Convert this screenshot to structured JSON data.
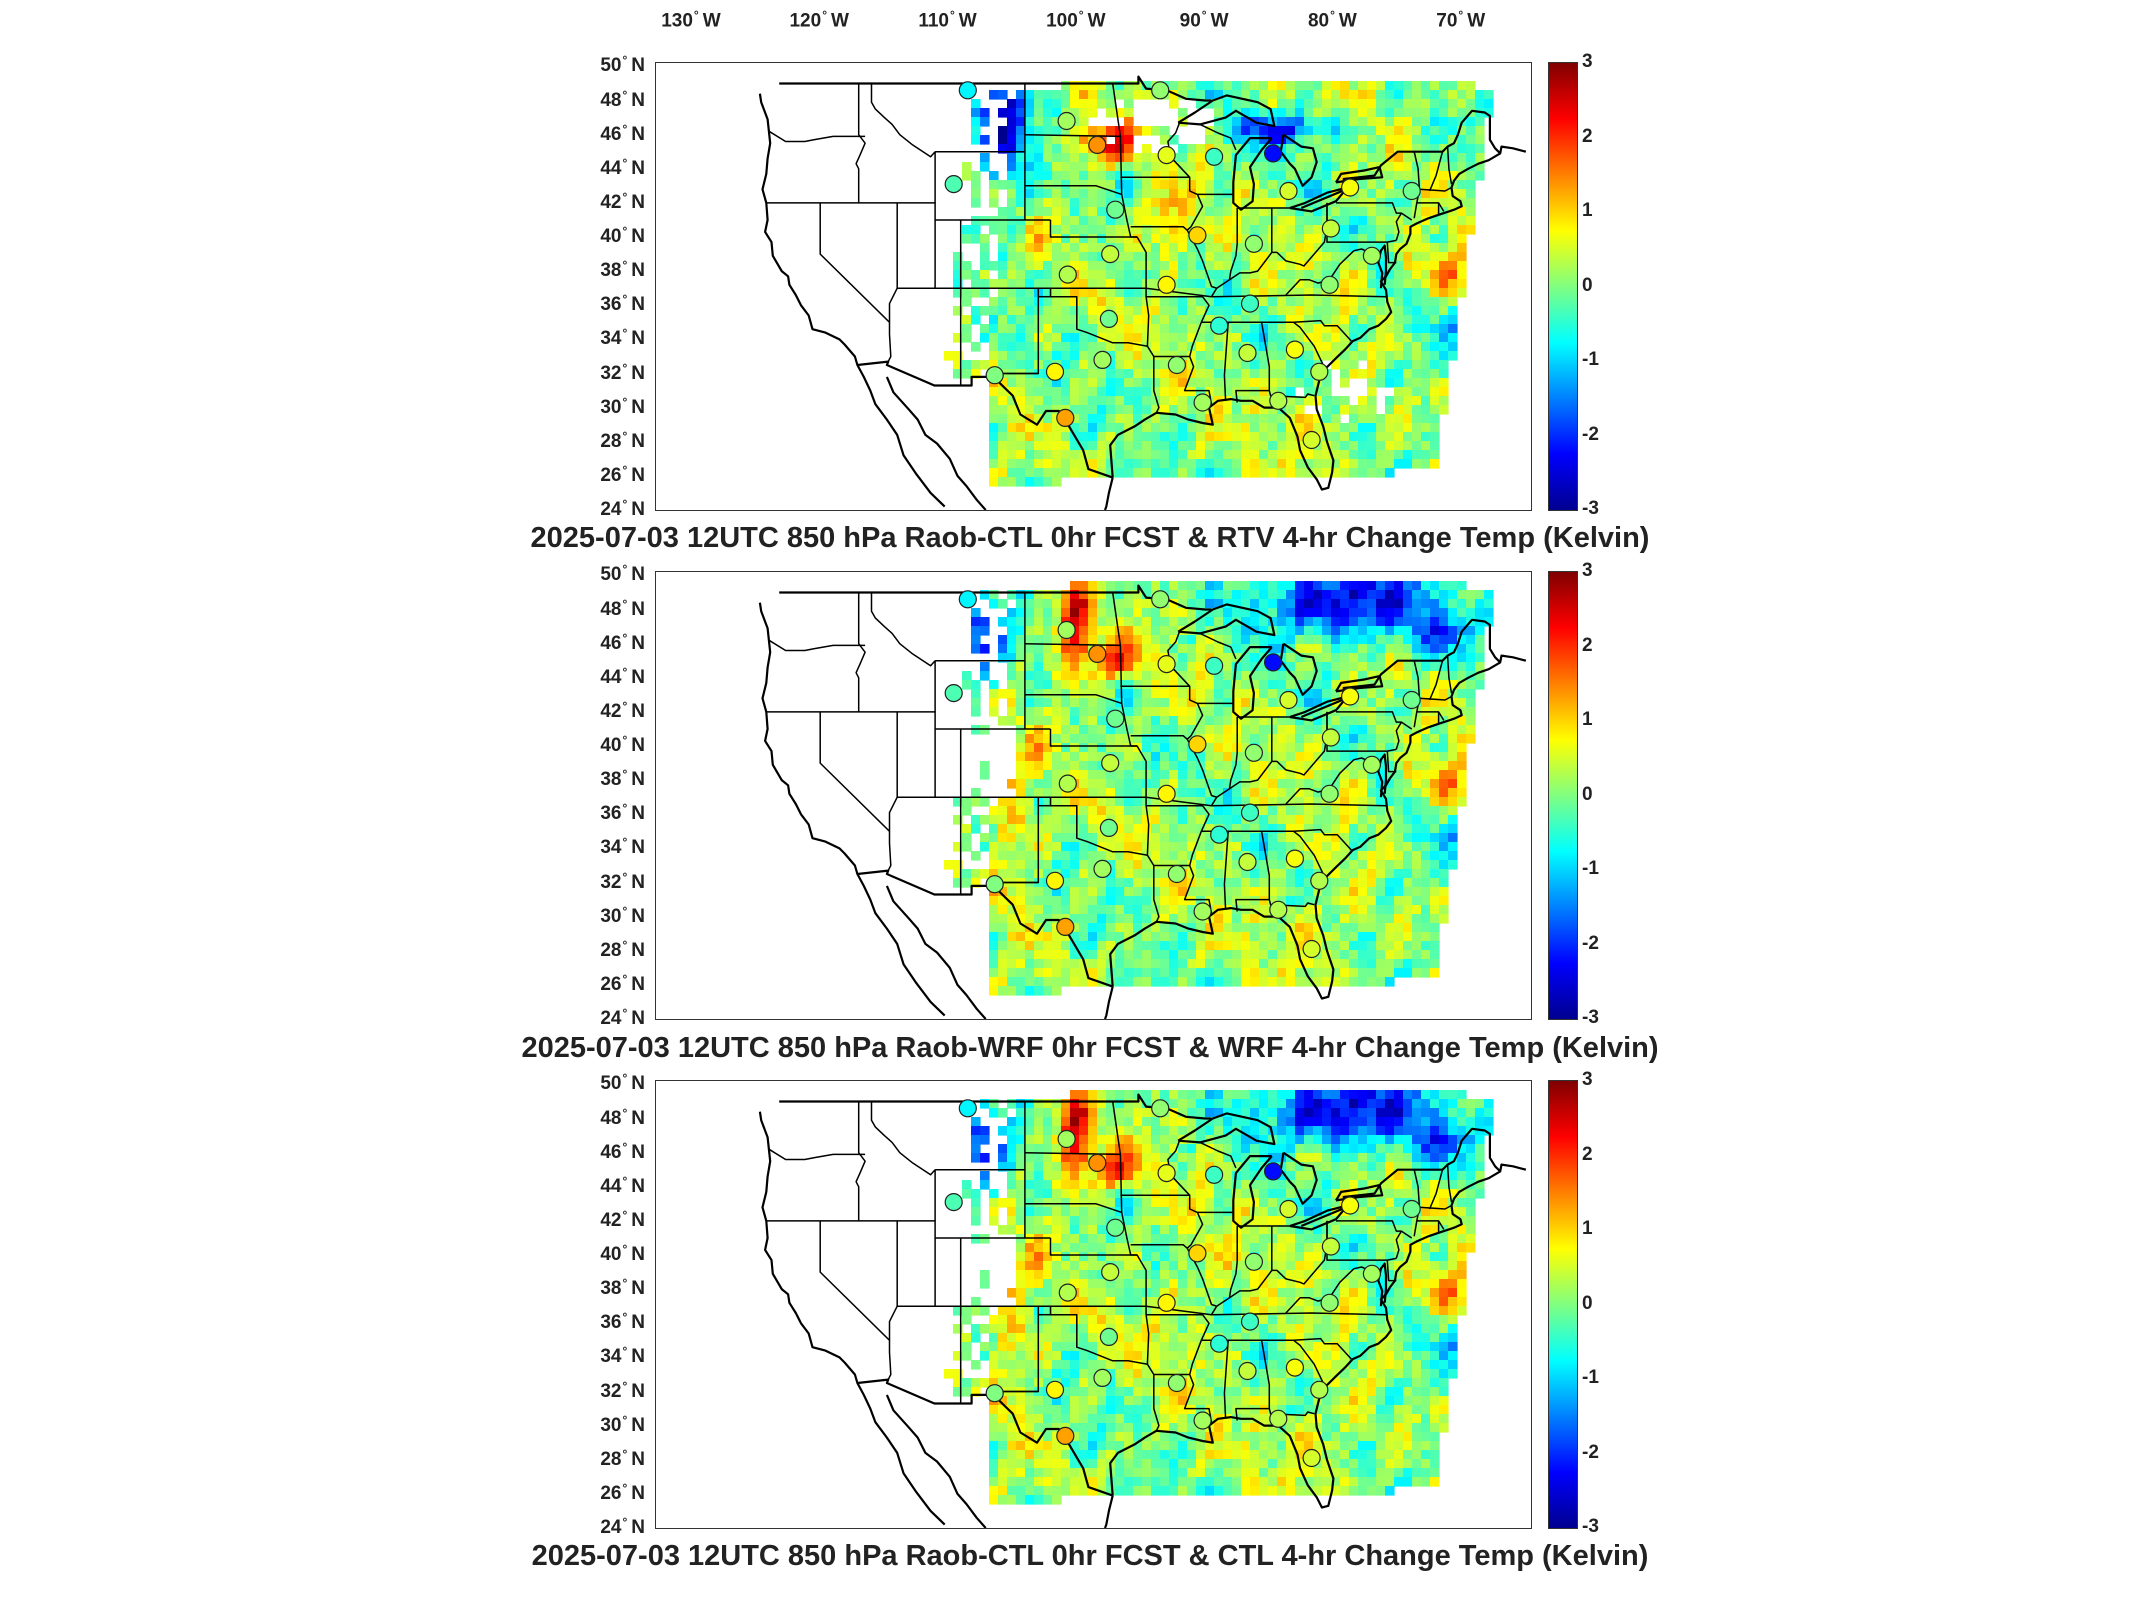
{
  "lon_ticks": [
    {
      "value": -130,
      "num": "130",
      "hemi": "W"
    },
    {
      "value": -120,
      "num": "120",
      "hemi": "W"
    },
    {
      "value": -110,
      "num": "110",
      "hemi": "W"
    },
    {
      "value": -100,
      "num": "100",
      "hemi": "W"
    },
    {
      "value": -90,
      "num": "90",
      "hemi": "W"
    },
    {
      "value": -80,
      "num": "80",
      "hemi": "W"
    },
    {
      "value": -70,
      "num": "70",
      "hemi": "W"
    }
  ],
  "lat_ticks": [
    {
      "value": 50,
      "num": "50",
      "hemi": "N"
    },
    {
      "value": 48,
      "num": "48",
      "hemi": "N"
    },
    {
      "value": 46,
      "num": "46",
      "hemi": "N"
    },
    {
      "value": 44,
      "num": "44",
      "hemi": "N"
    },
    {
      "value": 42,
      "num": "42",
      "hemi": "N"
    },
    {
      "value": 40,
      "num": "40",
      "hemi": "N"
    },
    {
      "value": 38,
      "num": "38",
      "hemi": "N"
    },
    {
      "value": 36,
      "num": "36",
      "hemi": "N"
    },
    {
      "value": 34,
      "num": "34",
      "hemi": "N"
    },
    {
      "value": 32,
      "num": "32",
      "hemi": "N"
    },
    {
      "value": 30,
      "num": "30",
      "hemi": "N"
    },
    {
      "value": 28,
      "num": "28",
      "hemi": "N"
    },
    {
      "value": 26,
      "num": "26",
      "hemi": "N"
    },
    {
      "value": 24,
      "num": "24",
      "hemi": "N"
    }
  ],
  "degree_symbol": "°",
  "colorbar": {
    "ticks": [
      "3",
      "2",
      "1",
      "0",
      "-1",
      "-2",
      "-3"
    ],
    "range": [
      -3,
      3
    ],
    "colors": [
      "#00008f",
      "#0000ff",
      "#0080ff",
      "#00ffff",
      "#80ff80",
      "#ffff00",
      "#ff8000",
      "#ff0000",
      "#800000"
    ]
  },
  "panels": [
    {
      "title": "2025-07-03 12UTC 850 hPa Raob-CTL 0hr FCST & RTV 4-hr Change Temp (Kelvin)",
      "variant": "rtv"
    },
    {
      "title": "2025-07-03 12UTC 850 hPa Raob-WRF 0hr FCST & WRF 4-hr Change Temp (Kelvin)",
      "variant": "wrf"
    },
    {
      "title": "2025-07-03 12UTC 850 hPa Raob-CTL 0hr FCST & CTL 4-hr Change Temp (Kelvin)",
      "variant": "ctl"
    }
  ],
  "stations": [
    {
      "lon": -108.5,
      "lat": 48.6,
      "v": -0.8
    },
    {
      "lon": -109.6,
      "lat": 43.1,
      "v": -0.3
    },
    {
      "lon": -100.8,
      "lat": 46.8,
      "v": 0.2
    },
    {
      "lon": -98.4,
      "lat": 45.4,
      "v": 1.4
    },
    {
      "lon": -93.5,
      "lat": 48.6,
      "v": 0.1
    },
    {
      "lon": -93.0,
      "lat": 44.8,
      "v": 0.6
    },
    {
      "lon": -89.3,
      "lat": 44.7,
      "v": -0.4
    },
    {
      "lon": -84.7,
      "lat": 44.9,
      "v": -2.2
    },
    {
      "lon": -83.5,
      "lat": 42.7,
      "v": 0.5
    },
    {
      "lon": -78.7,
      "lat": 42.9,
      "v": 0.7
    },
    {
      "lon": -73.9,
      "lat": 42.7,
      "v": -0.1
    },
    {
      "lon": -97.0,
      "lat": 41.6,
      "v": -0.1
    },
    {
      "lon": -90.6,
      "lat": 40.1,
      "v": 1.0
    },
    {
      "lon": -86.2,
      "lat": 39.6,
      "v": 0.1
    },
    {
      "lon": -80.2,
      "lat": 40.5,
      "v": 0.4
    },
    {
      "lon": -100.7,
      "lat": 37.8,
      "v": 0.3
    },
    {
      "lon": -97.4,
      "lat": 39.0,
      "v": 0.4
    },
    {
      "lon": -93.0,
      "lat": 37.2,
      "v": 0.8
    },
    {
      "lon": -88.9,
      "lat": 34.8,
      "v": -0.5
    },
    {
      "lon": -86.5,
      "lat": 36.1,
      "v": -0.4
    },
    {
      "lon": -80.3,
      "lat": 37.2,
      "v": 0.1
    },
    {
      "lon": -77.0,
      "lat": 38.9,
      "v": 0.2
    },
    {
      "lon": -97.5,
      "lat": 35.2,
      "v": -0.1
    },
    {
      "lon": -101.7,
      "lat": 32.1,
      "v": 0.8
    },
    {
      "lon": -98.0,
      "lat": 32.8,
      "v": 0.2
    },
    {
      "lon": -92.2,
      "lat": 32.5,
      "v": 0.1
    },
    {
      "lon": -86.7,
      "lat": 33.2,
      "v": 0.4
    },
    {
      "lon": -83.0,
      "lat": 33.4,
      "v": 0.7
    },
    {
      "lon": -81.1,
      "lat": 32.1,
      "v": 0.3
    },
    {
      "lon": -106.4,
      "lat": 31.9,
      "v": 0.0
    },
    {
      "lon": -100.9,
      "lat": 29.4,
      "v": 1.3
    },
    {
      "lon": -90.2,
      "lat": 30.3,
      "v": 0.2
    },
    {
      "lon": -84.3,
      "lat": 30.4,
      "v": 0.3
    },
    {
      "lon": -81.7,
      "lat": 28.1,
      "v": 0.5
    }
  ]
}
